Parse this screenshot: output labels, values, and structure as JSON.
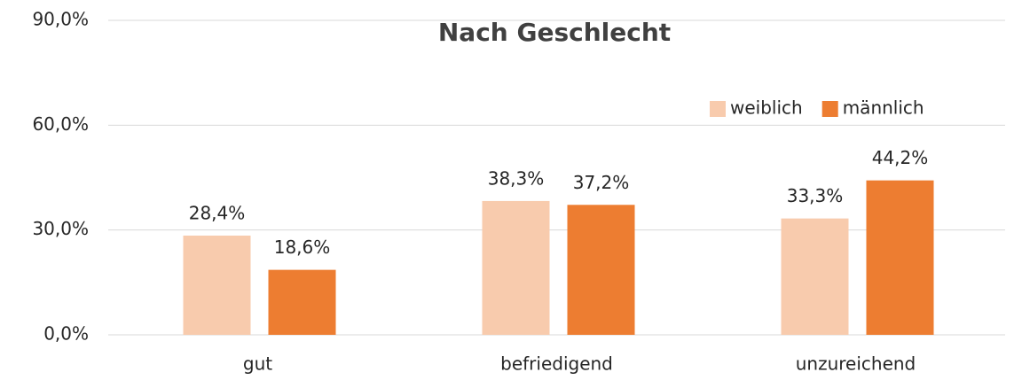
{
  "chart_data": {
    "type": "bar",
    "title": "Nach Geschlecht",
    "categories": [
      "gut",
      "befriedigend",
      "unzureichend"
    ],
    "series": [
      {
        "name": "weiblich",
        "color": "#f8cbad",
        "values": [
          28.4,
          38.3,
          33.3
        ],
        "value_labels": [
          "28,4%",
          "38,3%",
          "33,3%"
        ]
      },
      {
        "name": "männlich",
        "color": "#ed7d31",
        "values": [
          18.6,
          37.2,
          44.2
        ],
        "value_labels": [
          "18,6%",
          "37,2%",
          "44,2%"
        ]
      }
    ],
    "ylim": [
      0,
      90
    ],
    "yticks": [
      {
        "value": 0,
        "label": "0,0%"
      },
      {
        "value": 30,
        "label": "30,0%"
      },
      {
        "value": 60,
        "label": "60,0%"
      },
      {
        "value": 90,
        "label": "90,0%"
      }
    ],
    "grid": true,
    "legend": "top-right"
  }
}
